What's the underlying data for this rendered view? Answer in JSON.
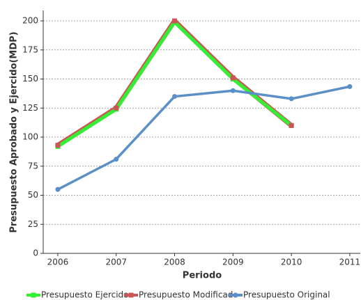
{
  "chart_data": {
    "type": "line",
    "x_label": "Periodo",
    "y_label": "Presupuesto Aprobado y Ejercido(MDP)",
    "x": [
      2006,
      2007,
      2008,
      2009,
      2010,
      2011
    ],
    "xlim": [
      2005.75,
      2011.18
    ],
    "xticks": [
      2006,
      2007,
      2008,
      2009,
      2010,
      2011
    ],
    "ylim": [
      0,
      209
    ],
    "yticks": [
      0,
      25,
      50,
      75,
      100,
      125,
      150,
      175,
      200
    ],
    "grid": true,
    "legend": "bottom",
    "series": [
      {
        "name": "Presupuesto Ejercido",
        "color": "#33ee33",
        "values": [
          92,
          124,
          199,
          150,
          110,
          null
        ]
      },
      {
        "name": "Presupuesto Modificado",
        "color": "#cc5555",
        "values": [
          93,
          125,
          200,
          151,
          110,
          null
        ]
      },
      {
        "name": "Presupuesto Original",
        "color": "#5b8fc8",
        "values": [
          55,
          81,
          135,
          140,
          133,
          143.5
        ]
      }
    ]
  }
}
